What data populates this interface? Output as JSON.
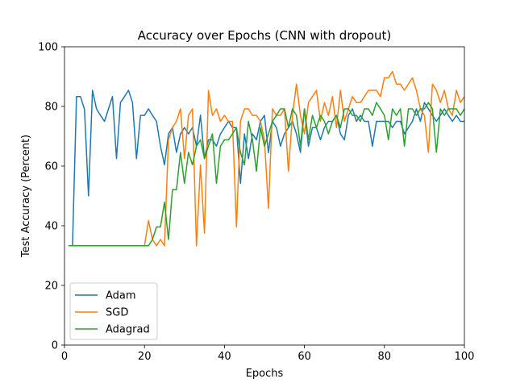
{
  "chart_data": {
    "type": "line",
    "title": "Accuracy over Epochs (CNN with dropout)",
    "xlabel": "Epochs",
    "ylabel": "Test Accuracy (Percent)",
    "xlim": [
      0,
      100
    ],
    "ylim": [
      0,
      100
    ],
    "xticks": [
      0,
      20,
      40,
      60,
      80,
      100
    ],
    "yticks": [
      0,
      20,
      40,
      60,
      80,
      100
    ],
    "grid": false,
    "legend_position": "bottom-left",
    "x": [
      1,
      2,
      3,
      4,
      5,
      6,
      7,
      8,
      9,
      10,
      11,
      12,
      13,
      14,
      15,
      16,
      17,
      18,
      19,
      20,
      21,
      22,
      23,
      24,
      25,
      26,
      27,
      28,
      29,
      30,
      31,
      32,
      33,
      34,
      35,
      36,
      37,
      38,
      39,
      40,
      41,
      42,
      43,
      44,
      45,
      46,
      47,
      48,
      49,
      50,
      51,
      52,
      53,
      54,
      55,
      56,
      57,
      58,
      59,
      60,
      61,
      62,
      63,
      64,
      65,
      66,
      67,
      68,
      69,
      70,
      71,
      72,
      73,
      74,
      75,
      76,
      77,
      78,
      79,
      80,
      81,
      82,
      83,
      84,
      85,
      86,
      87,
      88,
      89,
      90,
      91,
      92,
      93,
      94,
      95,
      96,
      97,
      98,
      99,
      100
    ],
    "series": [
      {
        "name": "Adam",
        "color": "#1f77b4",
        "values": [
          33.3,
          33.3,
          83.3,
          83.3,
          79.0,
          50.0,
          85.4,
          79.2,
          77.0,
          75.0,
          79.2,
          83.3,
          62.5,
          81.3,
          83.3,
          85.4,
          81.3,
          62.5,
          77.0,
          77.0,
          79.2,
          77.0,
          75.0,
          66.7,
          60.4,
          70.8,
          72.9,
          64.6,
          70.8,
          72.9,
          70.8,
          72.9,
          66.7,
          77.1,
          62.5,
          68.8,
          68.8,
          66.7,
          70.8,
          72.9,
          75.0,
          72.9,
          72.9,
          54.2,
          70.8,
          62.5,
          70.8,
          68.8,
          75.0,
          77.0,
          64.5,
          75.0,
          72.9,
          66.7,
          70.8,
          72.9,
          75.0,
          70.8,
          64.6,
          79.2,
          66.7,
          72.9,
          72.9,
          68.8,
          72.9,
          75.0,
          75.0,
          77.0,
          70.8,
          68.8,
          77.0,
          79.2,
          75.0,
          77.0,
          75.0,
          75.0,
          66.7,
          75.0,
          75.0,
          75.0,
          75.0,
          72.9,
          75.0,
          75.0,
          70.8,
          72.9,
          75.0,
          79.2,
          75.0,
          81.3,
          79.2,
          77.0,
          75.0,
          77.0,
          79.2,
          77.0,
          75.0,
          77.0,
          75.0,
          75.0
        ]
      },
      {
        "name": "SGD",
        "color": "#ff7f0e",
        "values": [
          33.3,
          33.3,
          33.3,
          33.3,
          33.3,
          33.3,
          33.3,
          33.3,
          33.3,
          33.3,
          33.3,
          33.3,
          33.3,
          33.3,
          33.3,
          33.3,
          33.3,
          33.3,
          33.3,
          33.3,
          41.7,
          35.4,
          33.3,
          35.4,
          33.3,
          68.8,
          72.9,
          75.0,
          79.2,
          62.5,
          77.0,
          79.2,
          33.3,
          60.4,
          37.5,
          85.4,
          77.0,
          79.2,
          75.0,
          77.0,
          75.0,
          75.0,
          39.6,
          75.0,
          79.2,
          79.2,
          77.0,
          77.0,
          75.0,
          68.8,
          45.8,
          79.2,
          77.0,
          77.0,
          79.2,
          58.3,
          77.0,
          87.5,
          77.0,
          70.8,
          81.3,
          83.3,
          85.4,
          75.0,
          81.3,
          77.0,
          83.3,
          72.9,
          85.4,
          75.0,
          79.2,
          83.3,
          81.3,
          81.3,
          83.3,
          85.4,
          85.4,
          85.4,
          83.3,
          89.6,
          89.6,
          91.7,
          87.5,
          87.5,
          85.4,
          87.5,
          89.6,
          85.4,
          79.2,
          77.0,
          64.6,
          87.5,
          85.4,
          81.3,
          85.4,
          79.2,
          77.0,
          85.4,
          81.3,
          83.3
        ]
      },
      {
        "name": "Adagrad",
        "color": "#2ca02c",
        "values": [
          33.3,
          33.3,
          33.3,
          33.3,
          33.3,
          33.3,
          33.3,
          33.3,
          33.3,
          33.3,
          33.3,
          33.3,
          33.3,
          33.3,
          33.3,
          33.3,
          33.3,
          33.3,
          33.3,
          33.3,
          33.3,
          35.4,
          39.6,
          39.6,
          47.9,
          35.4,
          52.1,
          52.1,
          64.6,
          54.2,
          64.6,
          60.4,
          66.7,
          68.8,
          62.5,
          66.7,
          70.8,
          54.2,
          66.7,
          68.8,
          68.8,
          70.8,
          72.9,
          64.6,
          60.4,
          75.0,
          68.8,
          58.3,
          72.9,
          66.7,
          70.8,
          75.0,
          77.0,
          79.2,
          79.2,
          72.9,
          79.2,
          77.0,
          66.7,
          79.2,
          68.8,
          77.0,
          72.9,
          77.0,
          75.0,
          70.8,
          75.0,
          77.0,
          72.9,
          79.2,
          79.2,
          77.0,
          77.0,
          75.0,
          79.2,
          79.2,
          77.0,
          81.3,
          79.2,
          77.0,
          68.8,
          79.2,
          77.0,
          79.2,
          66.7,
          79.2,
          79.2,
          77.0,
          79.2,
          79.2,
          81.3,
          79.2,
          64.6,
          79.2,
          77.0,
          79.2,
          79.2,
          79.2,
          77.0,
          79.2
        ]
      }
    ]
  }
}
